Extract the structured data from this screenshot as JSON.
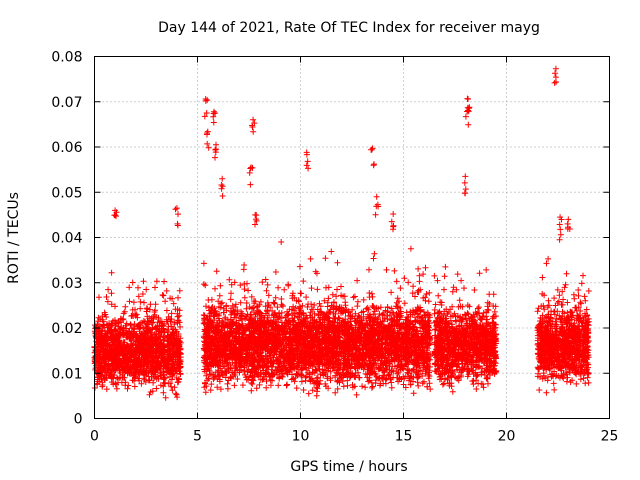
{
  "chart_data": {
    "type": "scatter",
    "title": "Day 144 of 2021, Rate Of TEC Index for receiver mayg",
    "xlabel": "GPS time / hours",
    "ylabel": "ROTI / TECUs",
    "xlim": [
      0,
      25
    ],
    "ylim": [
      0,
      0.08
    ],
    "xticks": [
      0,
      5,
      10,
      15,
      20,
      25
    ],
    "xtick_labels": [
      "0",
      "5",
      "10",
      "15",
      "20",
      "25"
    ],
    "yticks": [
      0,
      0.01,
      0.02,
      0.03,
      0.04,
      0.05,
      0.06,
      0.07,
      0.08
    ],
    "ytick_labels": [
      "0",
      "0.01",
      "0.02",
      "0.03",
      "0.04",
      "0.05",
      "0.06",
      "0.07",
      "0.08"
    ],
    "grid": true,
    "marker": "plus",
    "color": "#ff0000",
    "data_segments": [
      {
        "x_start": 0.0,
        "x_end": 4.2,
        "y_low": 0.004,
        "y_high": 0.025
      },
      {
        "x_start": 5.3,
        "x_end": 16.3,
        "y_low": 0.004,
        "y_high": 0.028
      },
      {
        "x_start": 16.5,
        "x_end": 19.5,
        "y_low": 0.005,
        "y_high": 0.027
      },
      {
        "x_start": 21.5,
        "x_end": 24.0,
        "y_low": 0.005,
        "y_high": 0.027
      }
    ],
    "notable_points": [
      {
        "x": 5.4,
        "y": 0.0706
      },
      {
        "x": 5.8,
        "y": 0.0678
      },
      {
        "x": 5.5,
        "y": 0.0634
      },
      {
        "x": 5.9,
        "y": 0.0605
      },
      {
        "x": 6.2,
        "y": 0.053
      },
      {
        "x": 7.7,
        "y": 0.066
      },
      {
        "x": 7.6,
        "y": 0.0555
      },
      {
        "x": 7.8,
        "y": 0.045
      },
      {
        "x": 10.3,
        "y": 0.0588
      },
      {
        "x": 13.5,
        "y": 0.0597
      },
      {
        "x": 13.7,
        "y": 0.049
      },
      {
        "x": 18.1,
        "y": 0.0707
      },
      {
        "x": 18.2,
        "y": 0.0688
      },
      {
        "x": 18.0,
        "y": 0.0535
      },
      {
        "x": 22.4,
        "y": 0.0773
      },
      {
        "x": 1.0,
        "y": 0.046
      },
      {
        "x": 4.0,
        "y": 0.0465
      },
      {
        "x": 14.5,
        "y": 0.0452
      },
      {
        "x": 22.6,
        "y": 0.0445
      },
      {
        "x": 23.0,
        "y": 0.044
      }
    ]
  }
}
